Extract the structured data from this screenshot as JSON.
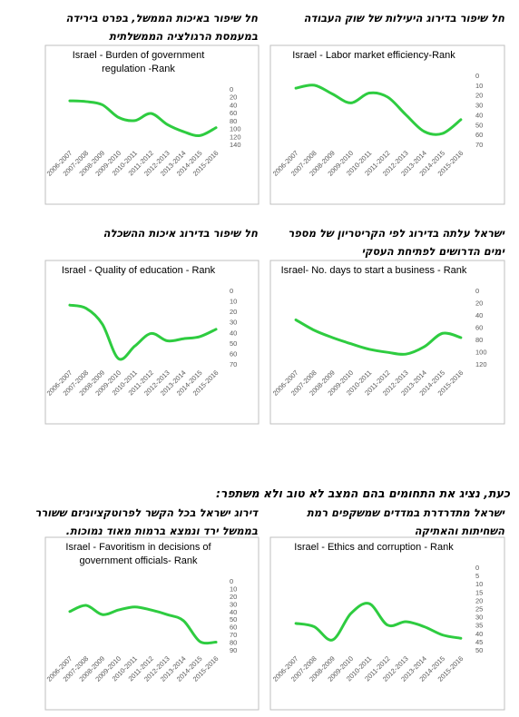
{
  "headings": [
    {
      "lines": [
        "חל שיפור בדירוג היעילות של שוק העבודה"
      ]
    },
    {
      "lines": [
        "חל שיפור באיכות הממשל, בפרט בירידה",
        "במעמסת הרגולציה הממשלתית"
      ]
    },
    {
      "lines": [
        "ישראל עלתה בדירוג לפי הקריטריון של מספר",
        "ימים הדרושים לפתיחת העסקי"
      ]
    },
    {
      "lines": [
        "חל שיפור בדירוג איכות ההשכלה"
      ]
    },
    {
      "lines": [
        "ישראל מתדרדרת במדדים שמשקפים רמת",
        "השחיתות והאתיקה"
      ]
    },
    {
      "lines": [
        "דירוג ישראל בכל הקשר לפרוטקציוניזם ששורר",
        "בממשל ירד ונמצא ברמות מאוד נמוכות."
      ]
    }
  ],
  "separator": "כעת, נציג את התחומים בהם המצב לא טוב ולא משתפר:",
  "chart_data": [
    {
      "type": "line",
      "title": [
        "Israel - Labor market efficiency-Rank"
      ],
      "color": "#2ecc40",
      "y_inverted": true,
      "categories": [
        "2006-2007",
        "2007-2008",
        "2008-2009",
        "2009-2010",
        "2010-2011",
        "2011-2012",
        "2012-2013",
        "2013-2014",
        "2014-2015",
        "2015-2016"
      ],
      "values": [
        13,
        10,
        19,
        28,
        18,
        22,
        40,
        57,
        59,
        45
      ],
      "ylim": [
        0,
        70
      ],
      "yticks": [
        0,
        10,
        20,
        30,
        40,
        50,
        60,
        70
      ]
    },
    {
      "type": "line",
      "title": [
        "Israel - Burden of government",
        "regulation -Rank"
      ],
      "color": "#2ecc40",
      "y_inverted": true,
      "categories": [
        "2006-2007",
        "2007-2008",
        "2008-2009",
        "2009-2010",
        "2010-2011",
        "2011-2012",
        "2012-2013",
        "2013-2014",
        "2014-2015",
        "2015-2016"
      ],
      "values": [
        30,
        32,
        40,
        72,
        80,
        62,
        90,
        108,
        118,
        98
      ],
      "ylim": [
        0,
        140
      ],
      "yticks": [
        0,
        20,
        40,
        60,
        80,
        100,
        120,
        140
      ]
    },
    {
      "type": "line",
      "title": [
        "Israel- No. days to start a business - Rank"
      ],
      "color": "#2ecc40",
      "y_inverted": true,
      "categories": [
        "2006-2007",
        "2007-2008",
        "2008-2009",
        "2009-2010",
        "2010-2011",
        "2011-2012",
        "2012-2013",
        "2013-2014",
        "2014-2015",
        "2015-2016"
      ],
      "values": [
        48,
        65,
        77,
        87,
        96,
        101,
        104,
        92,
        70,
        77
      ],
      "ylim": [
        0,
        120
      ],
      "yticks": [
        0,
        20,
        40,
        60,
        80,
        100,
        120
      ]
    },
    {
      "type": "line",
      "title": [
        "Israel - Quality of education - Rank"
      ],
      "color": "#2ecc40",
      "y_inverted": true,
      "categories": [
        "2006-2007",
        "2007-2008",
        "2008-2009",
        "2009-2010",
        "2010-2011",
        "2011-2012",
        "2012-2013",
        "2013-2014",
        "2014-2015",
        "2015-2016"
      ],
      "values": [
        14,
        17,
        32,
        65,
        53,
        41,
        48,
        46,
        44,
        37
      ],
      "ylim": [
        0,
        70
      ],
      "yticks": [
        0,
        10,
        20,
        30,
        40,
        50,
        60,
        70
      ]
    },
    {
      "type": "line",
      "title": [
        "Israel - Ethics and corruption - Rank"
      ],
      "color": "#2ecc40",
      "y_inverted": true,
      "categories": [
        "2006-2007",
        "2007-2008",
        "2008-2009",
        "2009-2010",
        "2010-2011",
        "2011-2012",
        "2012-2013",
        "2013-2014",
        "2014-2015",
        "2015-2016"
      ],
      "values": [
        34,
        36,
        44,
        28,
        22,
        35,
        33,
        36,
        41,
        43
      ],
      "ylim": [
        0,
        50
      ],
      "yticks": [
        0,
        5,
        10,
        15,
        20,
        25,
        30,
        35,
        40,
        45,
        50
      ]
    },
    {
      "type": "line",
      "title": [
        "Israel - Favoritism in decisions of",
        "government officials- Rank"
      ],
      "color": "#2ecc40",
      "y_inverted": true,
      "categories": [
        "2006-2007",
        "2007-2008",
        "2008-2009",
        "2009-2010",
        "2010-2011",
        "2011-2012",
        "2012-2013",
        "2013-2014",
        "2014-2015",
        "2015-2016"
      ],
      "values": [
        40,
        32,
        44,
        38,
        34,
        38,
        44,
        52,
        79,
        80
      ],
      "ylim": [
        0,
        90
      ],
      "yticks": [
        0,
        10,
        20,
        30,
        40,
        50,
        60,
        70,
        80,
        90
      ]
    }
  ]
}
